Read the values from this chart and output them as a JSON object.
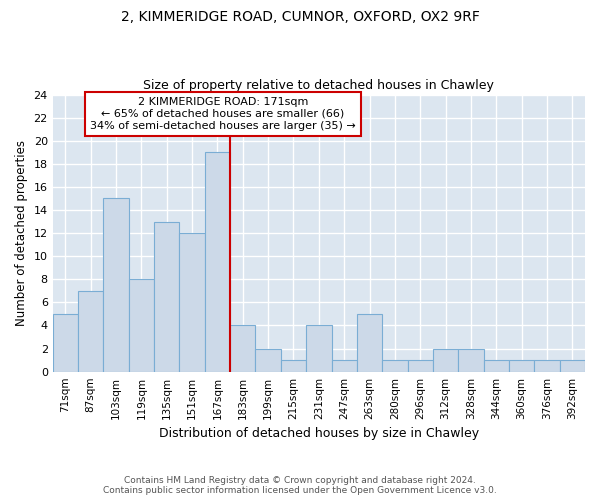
{
  "title1": "2, KIMMERIDGE ROAD, CUMNOR, OXFORD, OX2 9RF",
  "title2": "Size of property relative to detached houses in Chawley",
  "xlabel": "Distribution of detached houses by size in Chawley",
  "ylabel": "Number of detached properties",
  "bar_labels": [
    "71sqm",
    "87sqm",
    "103sqm",
    "119sqm",
    "135sqm",
    "151sqm",
    "167sqm",
    "183sqm",
    "199sqm",
    "215sqm",
    "231sqm",
    "247sqm",
    "263sqm",
    "280sqm",
    "296sqm",
    "312sqm",
    "328sqm",
    "344sqm",
    "360sqm",
    "376sqm",
    "392sqm"
  ],
  "bar_values": [
    5,
    7,
    15,
    8,
    13,
    12,
    19,
    4,
    2,
    1,
    4,
    1,
    5,
    1,
    1,
    2,
    2,
    1,
    1,
    1,
    1
  ],
  "bar_color": "#ccd9e8",
  "bar_edgecolor": "#7aadd4",
  "ylim": [
    0,
    24
  ],
  "yticks": [
    0,
    2,
    4,
    6,
    8,
    10,
    12,
    14,
    16,
    18,
    20,
    22,
    24
  ],
  "red_line_x": 6.5,
  "red_line_color": "#cc0000",
  "annotation_line1": "2 KIMMERIDGE ROAD: 171sqm",
  "annotation_line2": "← 65% of detached houses are smaller (66)",
  "annotation_line3": "34% of semi-detached houses are larger (35) →",
  "annotation_box_color": "#cc0000",
  "footnote1": "Contains HM Land Registry data © Crown copyright and database right 2024.",
  "footnote2": "Contains public sector information licensed under the Open Government Licence v3.0.",
  "plot_bg_color": "#dce6f0",
  "fig_bg_color": "#ffffff",
  "grid_color": "#ffffff"
}
